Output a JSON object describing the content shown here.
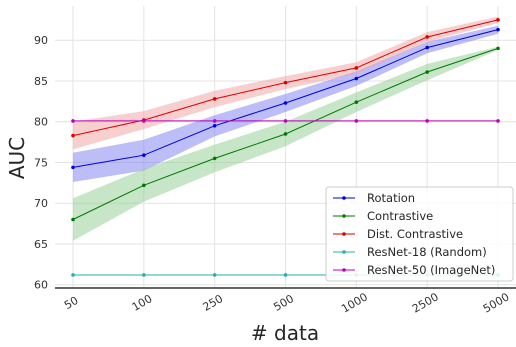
{
  "chart_data": {
    "type": "line",
    "categories": [
      "50",
      "100",
      "250",
      "500",
      "1000",
      "2500",
      "5000"
    ],
    "xlabel": "# data",
    "ylabel": "AUC",
    "ylim": [
      59.6,
      94.2
    ],
    "yticks": [
      60,
      65,
      70,
      75,
      80,
      85,
      90
    ],
    "grid": true,
    "legend": "bottom-right",
    "series": [
      {
        "name": "Rotation",
        "color": "#0000dd",
        "band_color": "#7b7bf0",
        "values": [
          74.4,
          75.9,
          79.5,
          82.3,
          85.3,
          89.1,
          91.3
        ],
        "lower": [
          72.6,
          74.0,
          78.2,
          81.2,
          84.4,
          88.4,
          90.8
        ],
        "upper": [
          76.2,
          77.8,
          80.8,
          83.4,
          86.2,
          89.8,
          91.8
        ]
      },
      {
        "name": "Contrastive",
        "color": "#007700",
        "band_color": "#8fcc8f",
        "values": [
          68.0,
          72.2,
          75.5,
          78.5,
          82.4,
          86.1,
          89.0
        ],
        "lower": [
          65.4,
          70.2,
          73.8,
          77.0,
          81.2,
          85.1,
          88.8
        ],
        "upper": [
          70.6,
          74.2,
          77.2,
          80.0,
          83.6,
          87.1,
          89.2
        ]
      },
      {
        "name": "Dist. Contrastive",
        "color": "#dd0000",
        "band_color": "#f2a0a0",
        "values": [
          78.3,
          80.2,
          82.8,
          84.8,
          86.6,
          90.4,
          92.5
        ],
        "lower": [
          76.6,
          79.1,
          81.8,
          84.0,
          85.9,
          89.8,
          92.1
        ],
        "upper": [
          80.0,
          81.3,
          83.8,
          85.6,
          87.3,
          91.0,
          92.9
        ]
      },
      {
        "name": "ResNet-18 (Random)",
        "color": "#22b0b0",
        "values": [
          61.2,
          61.2,
          61.2,
          61.2,
          61.2,
          61.2,
          61.2
        ]
      },
      {
        "name": "ResNet-50 (ImageNet)",
        "color": "#bb00bb",
        "values": [
          80.1,
          80.1,
          80.1,
          80.1,
          80.1,
          80.1,
          80.1
        ]
      }
    ]
  }
}
